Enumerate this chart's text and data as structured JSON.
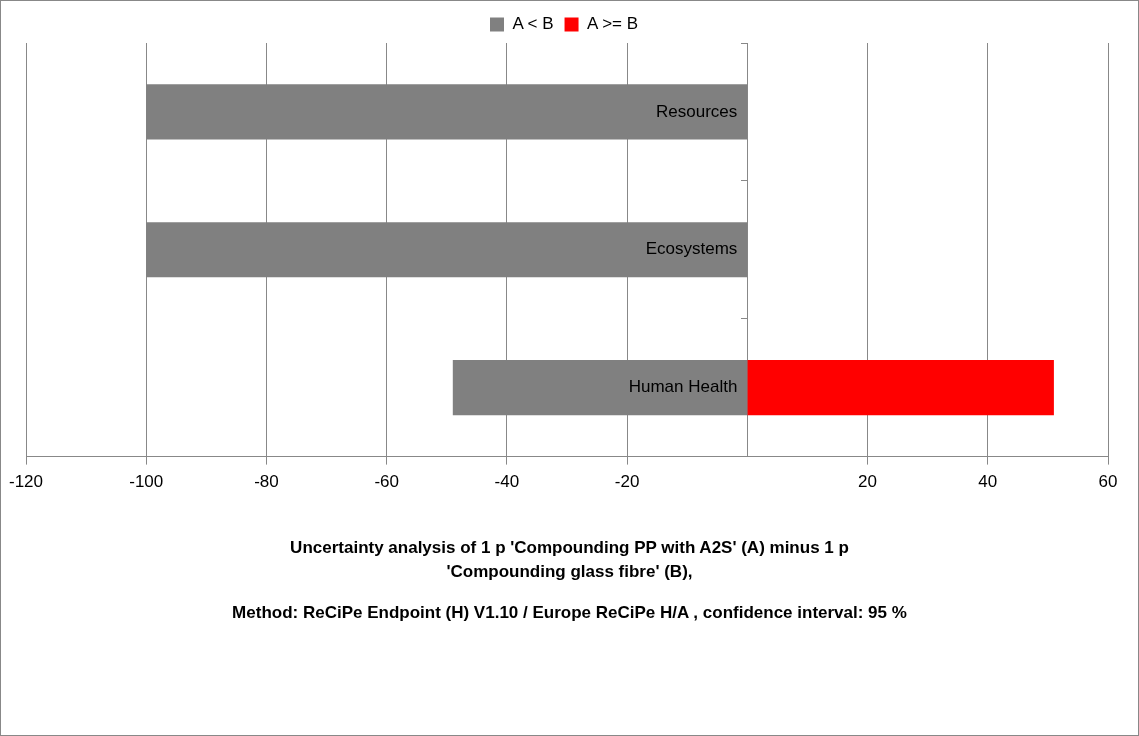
{
  "chart_data": {
    "type": "bar",
    "orientation": "horizontal",
    "stacked": true,
    "title": "Uncertainty analysis of 1 p 'Compounding PP with A2S' (A) minus 1 p 'Compounding glass fibre' (B),",
    "subtitle": "Method: ReCiPe Endpoint (H) V1.10 / Europe ReCiPe H/A , confidence interval: 95 %",
    "categories": [
      "Resources",
      "Ecosystems",
      "Human Health"
    ],
    "series": [
      {
        "name": "A < B",
        "color": "#808080",
        "values": [
          -100,
          -100,
          -49
        ]
      },
      {
        "name": "A >= B",
        "color": "#ff0000",
        "values": [
          0,
          0,
          51
        ]
      }
    ],
    "xlim": [
      -120,
      60
    ],
    "xticks": [
      -120,
      -100,
      -80,
      -60,
      -40,
      -20,
      20,
      40,
      60
    ],
    "grid": "x",
    "legend": "top"
  }
}
